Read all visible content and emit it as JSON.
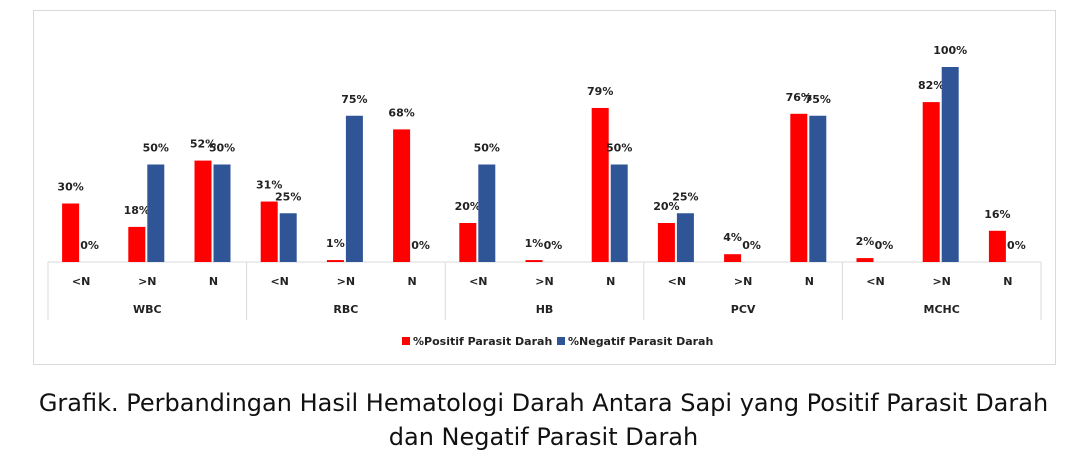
{
  "chart_data": {
    "type": "bar",
    "groups": [
      "WBC",
      "RBC",
      "HB",
      "PCV",
      "MCHC"
    ],
    "categories": [
      "<N",
      ">N",
      "N",
      "<N",
      ">N",
      "N",
      "<N",
      ">N",
      "N",
      "<N",
      ">N",
      "N",
      "<N",
      ">N",
      "N"
    ],
    "series": [
      {
        "name": "%Positif Parasit Darah",
        "color": "#ff0000",
        "values": [
          30,
          18,
          52,
          31,
          1,
          68,
          20,
          1,
          79,
          20,
          4,
          76,
          2,
          82,
          16
        ],
        "value_labels": [
          "30%",
          "18%",
          "52%",
          "31%",
          "1%",
          "68%",
          "20%",
          "1%",
          "79%",
          "20%",
          "4%",
          "76%",
          "2%",
          "82%",
          "16%"
        ]
      },
      {
        "name": "%Negatif Parasit Darah",
        "color": "#2f5597",
        "values": [
          0,
          50,
          50,
          25,
          75,
          0,
          50,
          0,
          50,
          25,
          0,
          75,
          0,
          100,
          0
        ],
        "value_labels": [
          "0%",
          "50%",
          "50%",
          "25%",
          "75%",
          "0%",
          "50%",
          "0%",
          "50%",
          "25%",
          "0%",
          "75%",
          "0%",
          "100%",
          "0%"
        ]
      }
    ]
  },
  "caption": "Grafik. Perbandingan Hasil Hematologi Darah Antara Sapi yang Positif Parasit Darah dan Negatif Parasit Darah"
}
